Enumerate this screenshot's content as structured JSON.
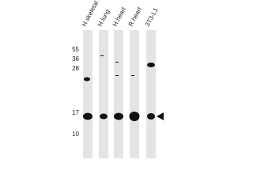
{
  "lanes": [
    "H.skeletal muscle",
    "H.lung",
    "H.heart",
    "R.heart",
    "3T3-L1"
  ],
  "markers": [
    "55",
    "36",
    "28",
    "17",
    "10"
  ]
}
